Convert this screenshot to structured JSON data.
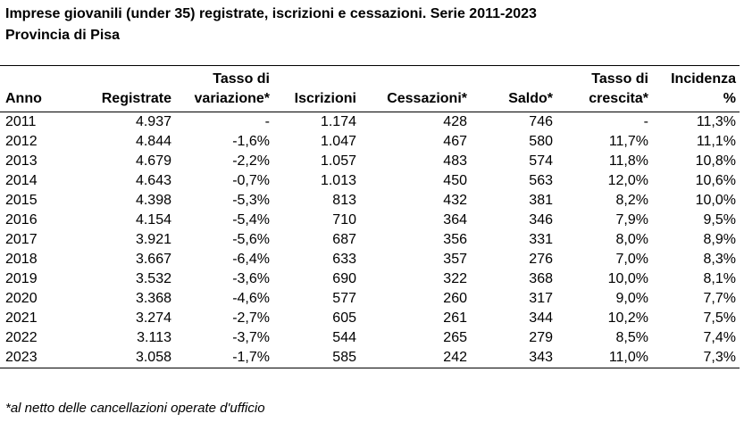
{
  "title": "Imprese giovanili (under 35) registrate, iscrizioni e cessazioni. Serie 2011-2023",
  "subtitle": "Provincia di Pisa",
  "columns": [
    "Anno",
    "Registrate",
    "Tasso di variazione*",
    "Iscrizioni",
    "Cessazioni*",
    "Saldo*",
    "Tasso di crescita*",
    "Incidenza %"
  ],
  "header": {
    "anno": "Anno",
    "registrate": "Registrate",
    "tasso_var_1": "Tasso di",
    "tasso_var_2": "variazione*",
    "iscrizioni": "Iscrizioni",
    "cessazioni": "Cessazioni*",
    "saldo": "Saldo*",
    "tasso_cresc_1": "Tasso di",
    "tasso_cresc_2": "crescita*",
    "incidenza_1": "Incidenza",
    "incidenza_2": "%"
  },
  "rows": [
    [
      "2011",
      "4.937",
      "-",
      "1.174",
      "428",
      "746",
      "-",
      "11,3%"
    ],
    [
      "2012",
      "4.844",
      "-1,6%",
      "1.047",
      "467",
      "580",
      "11,7%",
      "11,1%"
    ],
    [
      "2013",
      "4.679",
      "-2,2%",
      "1.057",
      "483",
      "574",
      "11,8%",
      "10,8%"
    ],
    [
      "2014",
      "4.643",
      "-0,7%",
      "1.013",
      "450",
      "563",
      "12,0%",
      "10,6%"
    ],
    [
      "2015",
      "4.398",
      "-5,3%",
      "813",
      "432",
      "381",
      "8,2%",
      "10,0%"
    ],
    [
      "2016",
      "4.154",
      "-5,4%",
      "710",
      "364",
      "346",
      "7,9%",
      "9,5%"
    ],
    [
      "2017",
      "3.921",
      "-5,6%",
      "687",
      "356",
      "331",
      "8,0%",
      "8,9%"
    ],
    [
      "2018",
      "3.667",
      "-6,4%",
      "633",
      "357",
      "276",
      "7,0%",
      "8,3%"
    ],
    [
      "2019",
      "3.532",
      "-3,6%",
      "690",
      "322",
      "368",
      "10,0%",
      "8,1%"
    ],
    [
      "2020",
      "3.368",
      "-4,6%",
      "577",
      "260",
      "317",
      "9,0%",
      "7,7%"
    ],
    [
      "2021",
      "3.274",
      "-2,7%",
      "605",
      "261",
      "344",
      "10,2%",
      "7,5%"
    ],
    [
      "2022",
      "3.113",
      "-3,7%",
      "544",
      "265",
      "279",
      "8,5%",
      "7,4%"
    ],
    [
      "2023",
      "3.058",
      "-1,7%",
      "585",
      "242",
      "343",
      "11,0%",
      "7,3%"
    ]
  ],
  "footnote": "*al netto delle cancellazioni operate d'ufficio"
}
